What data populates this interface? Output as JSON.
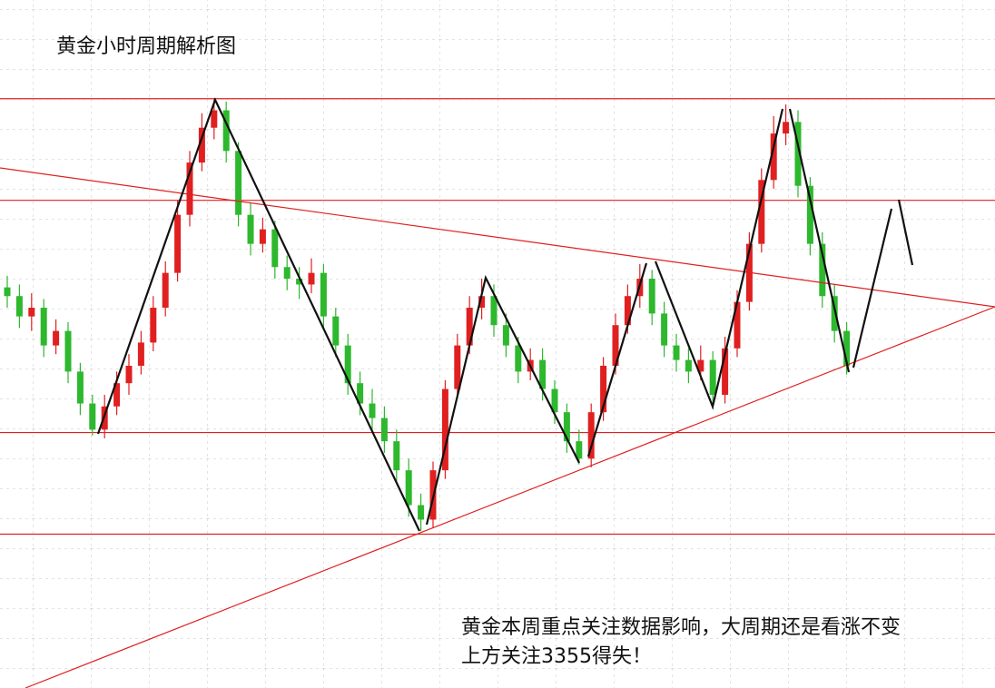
{
  "chart_data": {
    "type": "candlestick",
    "title": "黄金小时周期解析图",
    "annotations": [
      "黄金本周重点关注数据影响，大周期还是看涨不变",
      "上方关注3355得失！"
    ],
    "up_color": "#e02020",
    "down_color": "#2db82d",
    "level_color": "#e02020",
    "ylim": [
      3187,
      3424
    ],
    "levels": [
      3390,
      3355,
      3275,
      3240
    ],
    "open": [
      3325,
      3322,
      3315,
      3318,
      3305,
      3310,
      3296,
      3285,
      3276,
      3284,
      3292,
      3298,
      3306,
      3318,
      3330,
      3350,
      3368,
      3380,
      3386,
      3372,
      3350,
      3340,
      3345,
      3332,
      3328,
      3326,
      3330,
      3315,
      3305,
      3292,
      3285,
      3280,
      3272,
      3262,
      3250,
      3245,
      3262,
      3290,
      3305,
      3318,
      3322,
      3312,
      3305,
      3296,
      3300,
      3290,
      3282,
      3272,
      3266,
      3282,
      3298,
      3312,
      3322,
      3328,
      3316,
      3305,
      3300,
      3296,
      3300,
      3288,
      3304,
      3320,
      3340,
      3362,
      3378,
      3382,
      3360,
      3340,
      3322,
      3310
    ],
    "high": [
      3329,
      3326,
      3323,
      3321,
      3314,
      3313,
      3299,
      3288,
      3288,
      3296,
      3302,
      3310,
      3322,
      3334,
      3355,
      3372,
      3385,
      3390,
      3389,
      3375,
      3354,
      3349,
      3348,
      3336,
      3332,
      3335,
      3333,
      3318,
      3309,
      3296,
      3290,
      3284,
      3276,
      3266,
      3254,
      3265,
      3293,
      3309,
      3322,
      3328,
      3326,
      3316,
      3308,
      3304,
      3304,
      3293,
      3285,
      3276,
      3285,
      3301,
      3316,
      3326,
      3333,
      3331,
      3320,
      3309,
      3304,
      3305,
      3303,
      3308,
      3324,
      3344,
      3366,
      3384,
      3388,
      3386,
      3363,
      3344,
      3326,
      3313
    ],
    "low": [
      3318,
      3311,
      3310,
      3301,
      3302,
      3292,
      3281,
      3274,
      3273,
      3281,
      3288,
      3295,
      3303,
      3315,
      3327,
      3346,
      3365,
      3376,
      3368,
      3346,
      3336,
      3337,
      3328,
      3324,
      3321,
      3323,
      3311,
      3301,
      3288,
      3281,
      3276,
      3268,
      3258,
      3246,
      3241,
      3242,
      3259,
      3287,
      3302,
      3314,
      3308,
      3301,
      3292,
      3293,
      3286,
      3278,
      3268,
      3264,
      3263,
      3279,
      3295,
      3309,
      3318,
      3312,
      3301,
      3296,
      3292,
      3293,
      3283,
      3285,
      3301,
      3317,
      3337,
      3359,
      3374,
      3356,
      3336,
      3318,
      3306,
      3295
    ],
    "close": [
      3322,
      3315,
      3318,
      3305,
      3310,
      3296,
      3285,
      3276,
      3284,
      3292,
      3298,
      3306,
      3318,
      3330,
      3350,
      3368,
      3380,
      3386,
      3372,
      3350,
      3340,
      3345,
      3332,
      3328,
      3326,
      3330,
      3315,
      3305,
      3292,
      3285,
      3280,
      3272,
      3262,
      3250,
      3245,
      3262,
      3290,
      3305,
      3318,
      3322,
      3312,
      3305,
      3296,
      3300,
      3290,
      3282,
      3272,
      3266,
      3282,
      3298,
      3312,
      3322,
      3328,
      3316,
      3305,
      3300,
      3296,
      3300,
      3288,
      3304,
      3320,
      3340,
      3362,
      3378,
      3382,
      3360,
      3340,
      3322,
      3310,
      3298
    ]
  }
}
